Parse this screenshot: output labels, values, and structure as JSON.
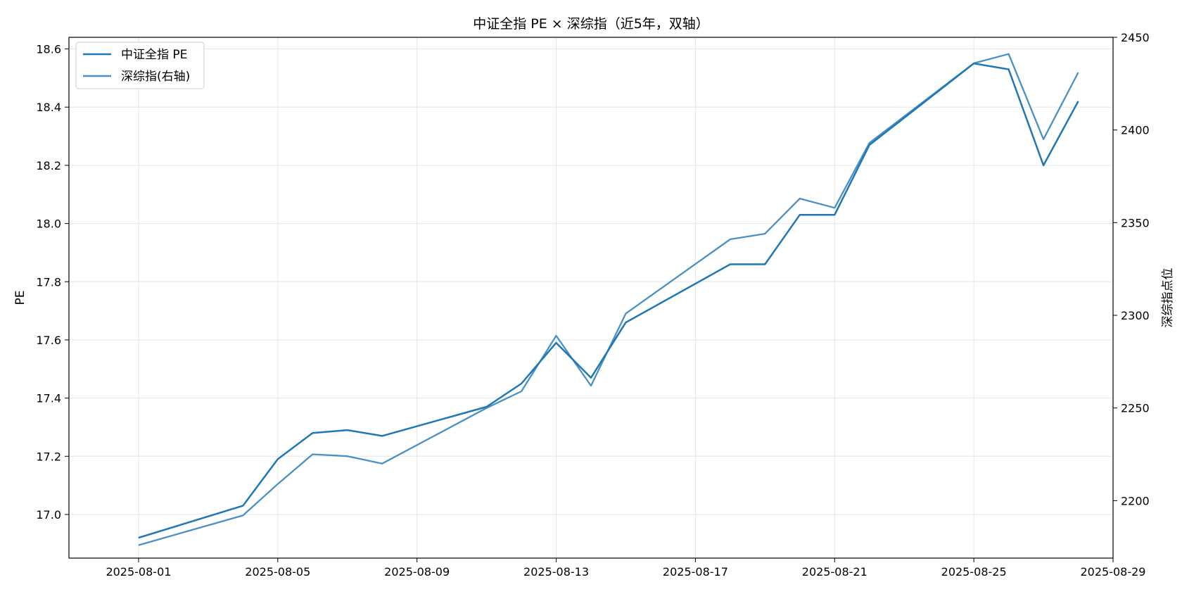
{
  "chart_data": {
    "type": "line",
    "title": "中证全指 PE × 深综指（近5年，双轴）",
    "ylabel": "PE",
    "y2label": "深综指点位",
    "ylim": [
      16.85,
      18.64
    ],
    "y2lim": [
      2169,
      2450
    ],
    "y_ticks": [
      17.0,
      17.2,
      17.4,
      17.6,
      17.8,
      18.0,
      18.2,
      18.4,
      18.6
    ],
    "y_tick_labels": [
      "17.0",
      "17.2",
      "17.4",
      "17.6",
      "17.8",
      "18.0",
      "18.2",
      "18.4",
      "18.6"
    ],
    "y2_ticks": [
      2200,
      2250,
      2300,
      2350,
      2400,
      2450
    ],
    "y2_tick_labels": [
      "2200",
      "2250",
      "2300",
      "2350",
      "2400",
      "2450"
    ],
    "x_range": [
      "2025-07-30",
      "2025-08-29"
    ],
    "x_ticks": [
      "2025-08-01",
      "2025-08-05",
      "2025-08-09",
      "2025-08-13",
      "2025-08-17",
      "2025-08-21",
      "2025-08-25",
      "2025-08-29"
    ],
    "grid": true,
    "legend": "top-left",
    "series": [
      {
        "name": "中证全指 PE",
        "axis": "left",
        "color": "#1f77b4",
        "x": [
          "2025-08-01",
          "2025-08-04",
          "2025-08-05",
          "2025-08-06",
          "2025-08-07",
          "2025-08-08",
          "2025-08-11",
          "2025-08-12",
          "2025-08-13",
          "2025-08-14",
          "2025-08-15",
          "2025-08-18",
          "2025-08-19",
          "2025-08-20",
          "2025-08-21",
          "2025-08-22",
          "2025-08-25",
          "2025-08-26",
          "2025-08-27",
          "2025-08-28"
        ],
        "values": [
          16.92,
          17.03,
          17.19,
          17.28,
          17.29,
          17.27,
          17.37,
          17.45,
          17.59,
          17.47,
          17.66,
          17.86,
          17.86,
          18.03,
          18.03,
          18.27,
          18.55,
          18.53,
          18.2,
          18.42
        ]
      },
      {
        "name": "深综指(右轴)",
        "axis": "right",
        "color": "#4a90c4",
        "x": [
          "2025-08-01",
          "2025-08-04",
          "2025-08-05",
          "2025-08-06",
          "2025-08-07",
          "2025-08-08",
          "2025-08-11",
          "2025-08-12",
          "2025-08-13",
          "2025-08-14",
          "2025-08-15",
          "2025-08-18",
          "2025-08-19",
          "2025-08-20",
          "2025-08-21",
          "2025-08-22",
          "2025-08-25",
          "2025-08-26",
          "2025-08-27",
          "2025-08-28"
        ],
        "values": [
          2176,
          2192,
          2209,
          2225,
          2224,
          2220,
          2250,
          2259,
          2289,
          2262,
          2301,
          2341,
          2344,
          2363,
          2358,
          2393,
          2436,
          2441,
          2395,
          2431
        ]
      }
    ]
  }
}
